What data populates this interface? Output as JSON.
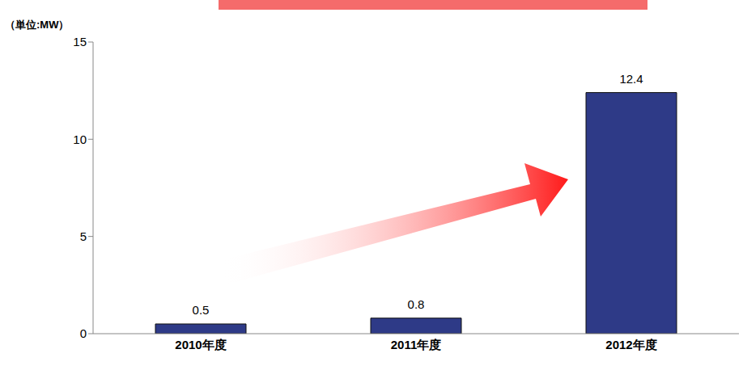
{
  "chart_data": {
    "type": "bar",
    "y_axis_label": "（単位:MW）",
    "categories": [
      "2010年度",
      "2011年度",
      "2012年度"
    ],
    "values": [
      0.5,
      0.8,
      12.4
    ],
    "color": "#2e3a87",
    "ylim": [
      0,
      15
    ],
    "yticks": [
      0,
      5,
      10,
      15
    ],
    "grid": false,
    "data_labels": true
  }
}
